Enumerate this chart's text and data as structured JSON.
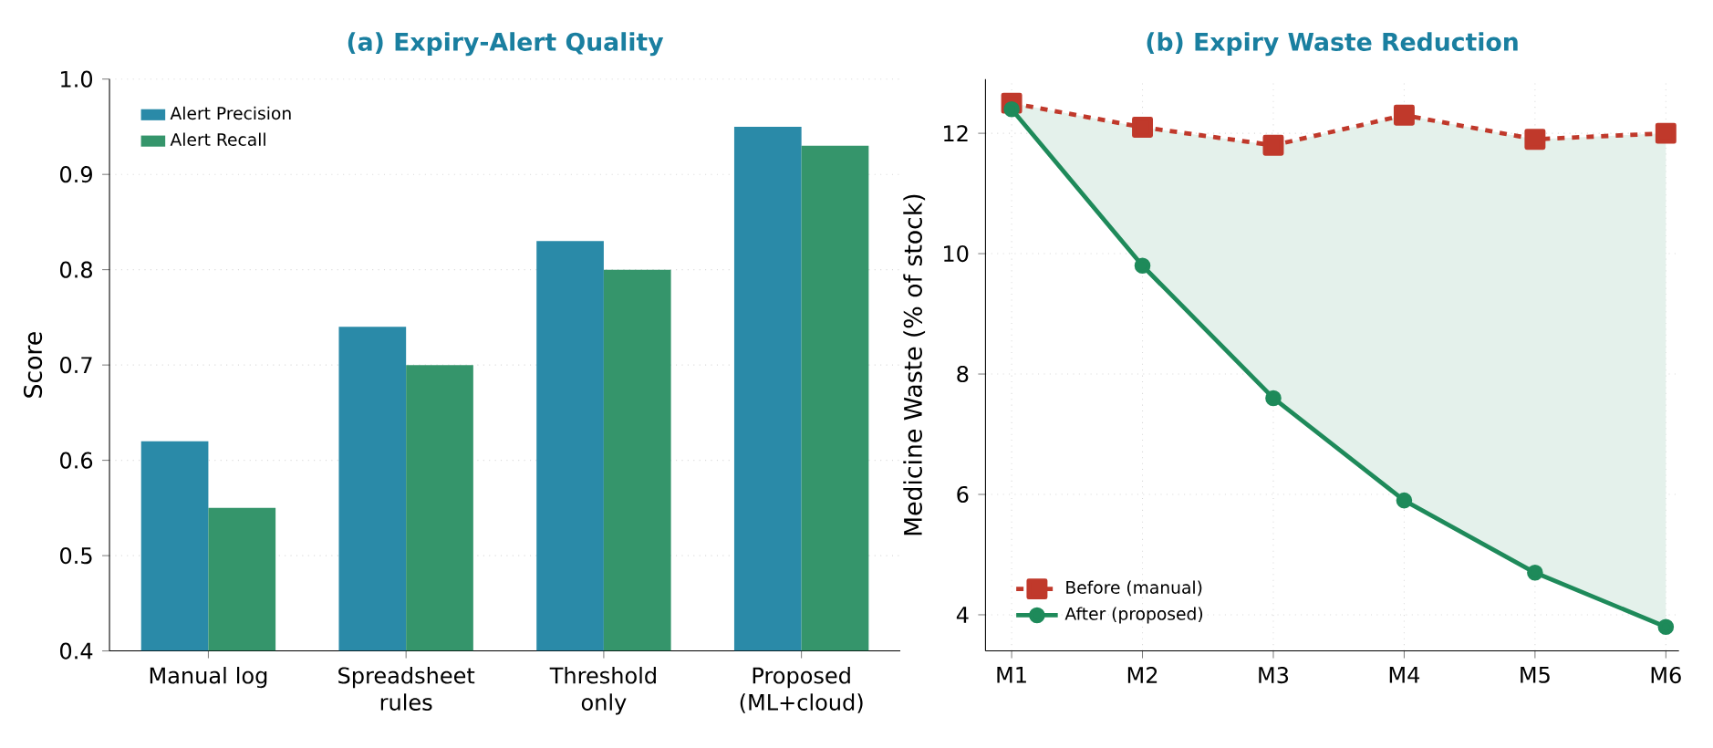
{
  "chart_data": [
    {
      "type": "bar",
      "title": "(a) Expiry-Alert Quality",
      "ylabel": "Score",
      "categories": [
        "Manual log",
        "Spreadsheet rules",
        "Threshold only",
        "Proposed (ML+cloud)"
      ],
      "series": [
        {
          "name": "Alert Precision",
          "color": "#2a8aa8",
          "values": [
            0.62,
            0.74,
            0.83,
            0.95
          ]
        },
        {
          "name": "Alert Recall",
          "color": "#35956b",
          "values": [
            0.55,
            0.7,
            0.8,
            0.93
          ]
        }
      ],
      "ylim": [
        0.4,
        1.0
      ],
      "yticks": [
        0.4,
        0.5,
        0.6,
        0.7,
        0.8,
        0.9,
        {
          "value": 1.0,
          "label": "1.0"
        }
      ],
      "grid": "y",
      "legend": "top left"
    },
    {
      "type": "line",
      "title": "(b) Expiry Waste Reduction",
      "ylabel": "Medicine Waste (% of stock)",
      "categories": [
        "M1",
        "M2",
        "M3",
        "M4",
        "M5",
        "M6"
      ],
      "series": [
        {
          "name": "Before (manual)",
          "color": "#c0392b",
          "marker": "square",
          "line_style": "dashed",
          "values": [
            12.5,
            12.1,
            11.8,
            12.3,
            11.9,
            12.0
          ]
        },
        {
          "name": "After (proposed)",
          "color": "#1e8a5a",
          "marker": "circle",
          "line_style": "solid",
          "values": [
            12.4,
            9.8,
            7.6,
            5.9,
            4.7,
            3.8
          ],
          "lower": [
            12.4,
            9.8,
            7.6,
            5.9,
            4.7,
            3.8
          ],
          "upper": [
            12.5,
            12.1,
            11.8,
            12.3,
            11.9,
            12.0
          ]
        }
      ],
      "ylim": [
        3.4,
        12.9
      ],
      "yticks": [
        4,
        6,
        8,
        10,
        12
      ],
      "grid": true,
      "legend": "bottom left"
    }
  ]
}
